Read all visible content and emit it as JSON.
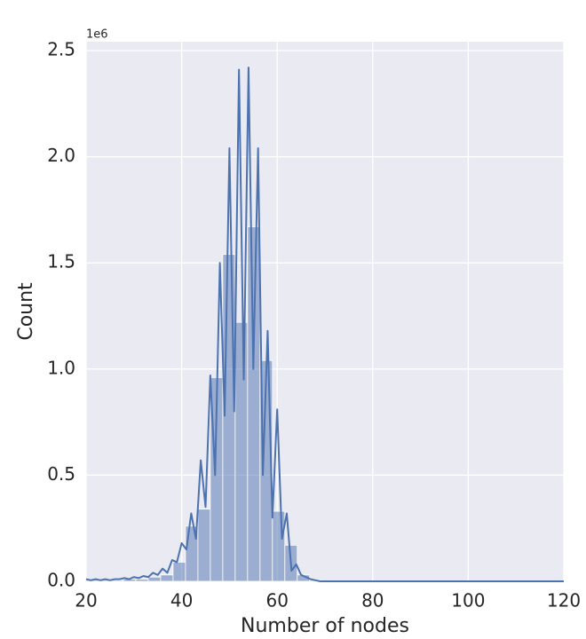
{
  "chart_data": {
    "type": "histogram",
    "xlabel": "Number of nodes",
    "ylabel": "Count",
    "offset_label": "1e6",
    "bins": [
      20,
      22.6,
      25.2,
      27.8,
      30.4,
      33,
      35.6,
      38.2,
      40.8,
      43.4,
      46,
      48.6,
      51.2,
      53.8,
      56.4,
      59,
      61.6,
      64.2,
      66.8,
      69.4,
      72,
      74.6,
      77.2,
      79.8,
      82.4,
      85,
      87.6,
      90.2,
      92.8,
      95.4,
      98,
      100.6,
      103.2,
      105.8,
      108.4,
      111,
      113.6,
      116.2,
      118.8
    ],
    "values": [
      0.005,
      0.005,
      0.005,
      0.01,
      0.01,
      0.02,
      0.03,
      0.09,
      0.26,
      0.34,
      0.96,
      1.54,
      1.22,
      1.67,
      1.04,
      0.33,
      0.17,
      0.03,
      0.005,
      0,
      0,
      0,
      0,
      0,
      0,
      0,
      0,
      0,
      0,
      0,
      0,
      0,
      0,
      0,
      0,
      0,
      0,
      0
    ],
    "color": "#4c72b0",
    "line": {
      "color": "#4c72b0",
      "x": [
        20,
        21,
        22,
        23,
        24,
        25,
        26,
        27,
        28,
        29,
        30,
        31,
        32,
        33,
        34,
        35,
        36,
        37,
        38,
        39,
        40,
        41,
        42,
        43,
        44,
        45,
        46,
        47,
        48,
        49,
        50,
        51,
        52,
        53,
        54,
        55,
        56,
        57,
        58,
        59,
        60,
        61,
        62,
        63,
        64,
        65,
        66,
        67,
        68,
        69,
        70,
        80,
        90,
        100,
        110,
        120
      ],
      "values": [
        0.01,
        0.005,
        0.01,
        0.005,
        0.01,
        0.005,
        0.01,
        0.01,
        0.015,
        0.01,
        0.02,
        0.015,
        0.025,
        0.02,
        0.04,
        0.03,
        0.06,
        0.04,
        0.1,
        0.09,
        0.18,
        0.15,
        0.32,
        0.2,
        0.57,
        0.35,
        0.97,
        0.5,
        1.5,
        0.78,
        2.04,
        0.8,
        2.41,
        0.95,
        2.42,
        1.0,
        2.04,
        0.5,
        1.18,
        0.3,
        0.81,
        0.2,
        0.32,
        0.05,
        0.08,
        0.03,
        0.02,
        0.01,
        0.005,
        0,
        0,
        0,
        0,
        0,
        0,
        0
      ]
    },
    "xlim": [
      20,
      120
    ],
    "xticks": [
      20,
      40,
      60,
      80,
      100,
      120
    ],
    "ylim": [
      0,
      2.5
    ],
    "yticks": [
      {
        "value": 0,
        "label": "0.0"
      },
      0.5,
      {
        "value": 1,
        "label": "1.0"
      },
      1.5,
      {
        "value": 2,
        "label": "2.0"
      },
      2.5
    ],
    "grid": true
  }
}
